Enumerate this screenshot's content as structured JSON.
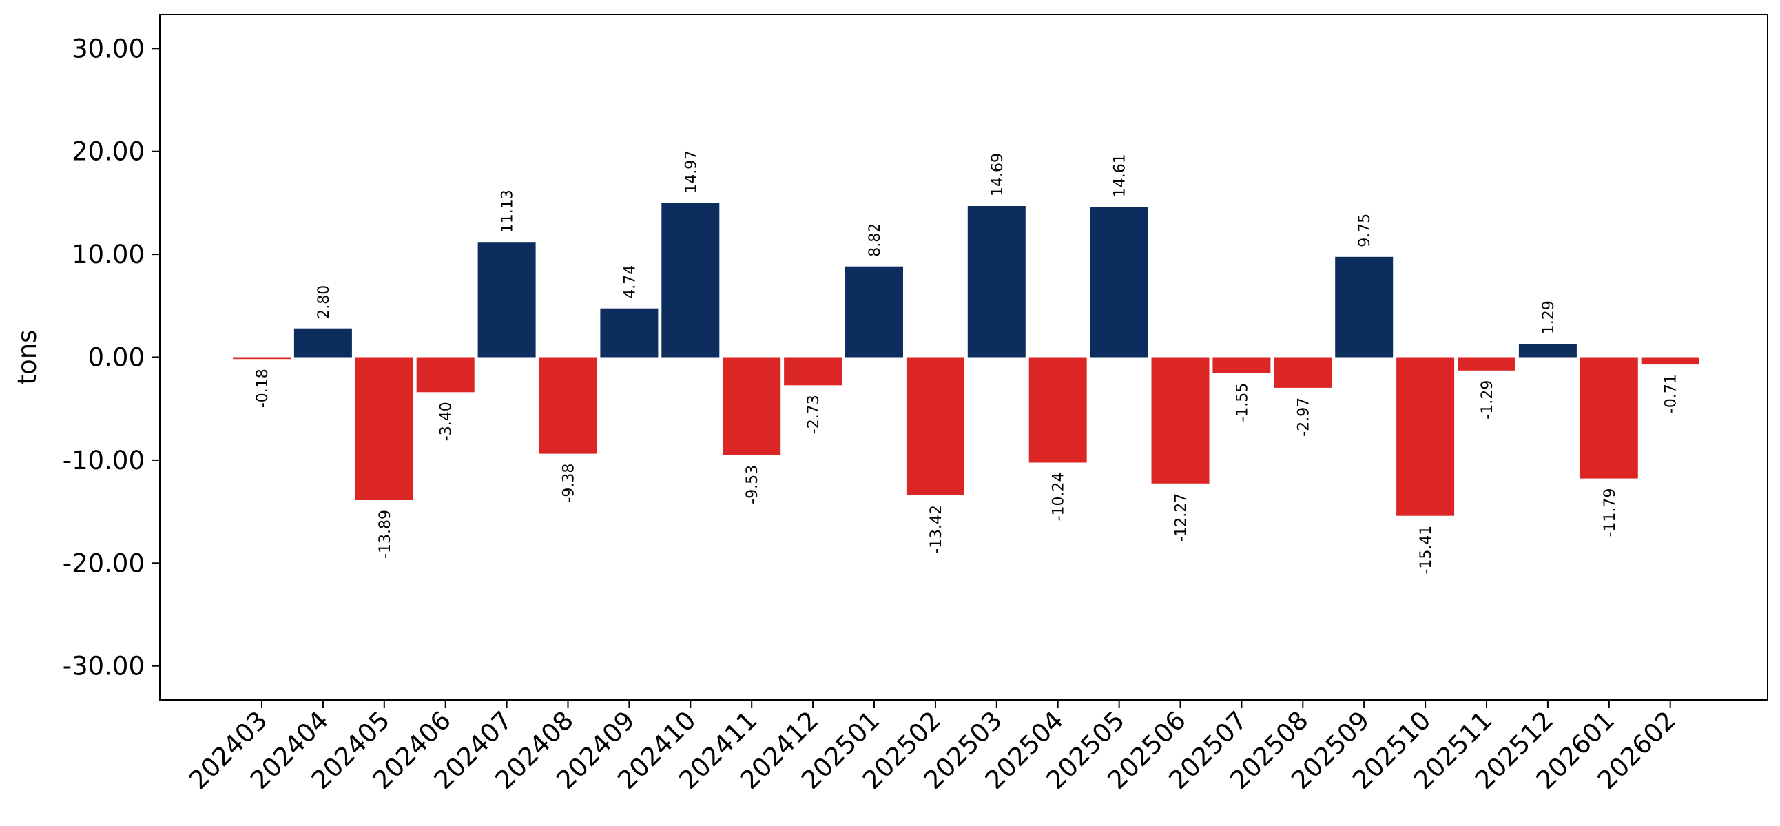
{
  "chart_data": {
    "type": "bar",
    "title": "",
    "xlabel": "",
    "ylabel": "tons",
    "ylim": [
      -33.3,
      33.3
    ],
    "yticks": [
      -30,
      -20,
      -10,
      0,
      10,
      20,
      30
    ],
    "ytick_labels": [
      "-30.00",
      "-20.00",
      "-10.00",
      "0.00",
      "10.00",
      "20.00",
      "30.00"
    ],
    "categories": [
      "202403",
      "202404",
      "202405",
      "202406",
      "202407",
      "202408",
      "202409",
      "202410",
      "202411",
      "202412",
      "202501",
      "202502",
      "202503",
      "202504",
      "202505",
      "202506",
      "202507",
      "202508",
      "202509",
      "202510",
      "202511",
      "202512",
      "202601",
      "202602"
    ],
    "values": [
      -0.18,
      2.8,
      -13.89,
      -3.4,
      11.13,
      -9.38,
      4.74,
      14.97,
      -9.53,
      -2.73,
      8.82,
      -13.42,
      14.69,
      -10.24,
      14.61,
      -12.27,
      -1.55,
      -2.97,
      9.75,
      -15.41,
      -1.29,
      1.29,
      -11.79,
      -0.71
    ],
    "value_labels": [
      "-0.18",
      "2.80",
      "-13.89",
      "-3.40",
      "11.13",
      "-9.38",
      "4.74",
      "14.97",
      "-9.53",
      "-2.73",
      "8.82",
      "-13.42",
      "14.69",
      "-10.24",
      "14.61",
      "-12.27",
      "-1.55",
      "-2.97",
      "9.75",
      "-15.41",
      "-1.29",
      "1.29",
      "-11.79",
      "-0.71"
    ],
    "colors": {
      "positive": "#0d2d5e",
      "negative": "#dc2626"
    },
    "grid": false,
    "legend": "none"
  }
}
